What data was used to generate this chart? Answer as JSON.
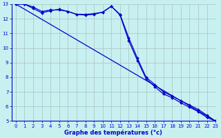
{
  "xlabel": "Graphe des températures (°c)",
  "xlim": [
    -0.5,
    23
  ],
  "ylim": [
    5,
    13
  ],
  "yticks": [
    5,
    6,
    7,
    8,
    9,
    10,
    11,
    12,
    13
  ],
  "xticks": [
    0,
    1,
    2,
    3,
    4,
    5,
    6,
    7,
    8,
    9,
    10,
    11,
    12,
    13,
    14,
    15,
    16,
    17,
    18,
    19,
    20,
    21,
    22,
    23
  ],
  "bg_color": "#c8f0f0",
  "grid_color": "#b0c8c8",
  "line_color": "#0000cc",
  "line1_x": [
    0,
    1,
    2,
    3,
    4,
    5,
    6,
    7,
    8,
    9,
    10,
    11,
    12,
    13,
    14,
    15,
    16,
    17,
    18,
    19,
    20,
    21,
    22,
    23
  ],
  "line1_y": [
    13.0,
    13.0,
    12.8,
    12.5,
    12.6,
    12.6,
    12.5,
    12.3,
    12.3,
    12.35,
    12.45,
    12.85,
    12.3,
    10.7,
    9.3,
    8.0,
    7.5,
    7.0,
    6.7,
    6.4,
    6.1,
    5.8,
    5.4,
    5.0
  ],
  "line2_x": [
    0,
    1,
    2,
    3,
    4,
    5,
    6,
    7,
    8,
    9,
    10,
    11,
    12,
    13,
    14,
    15,
    16,
    17,
    18,
    19,
    20,
    21,
    22,
    23
  ],
  "line2_y": [
    13.0,
    13.0,
    12.7,
    12.4,
    12.55,
    12.65,
    12.5,
    12.3,
    12.25,
    12.3,
    12.45,
    12.85,
    12.25,
    10.5,
    9.15,
    7.9,
    7.35,
    6.85,
    6.6,
    6.25,
    5.95,
    5.65,
    5.25,
    5.0
  ],
  "line3_x": [
    0,
    23
  ],
  "line3_y": [
    13.0,
    5.0
  ]
}
